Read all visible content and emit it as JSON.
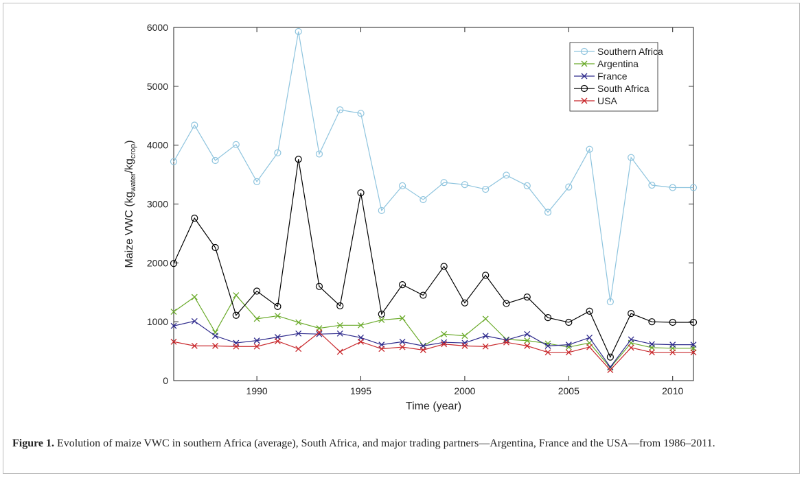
{
  "chart_data": {
    "type": "line",
    "x_label": "Time (year)",
    "y_label": [
      "Maize VWC (kg",
      "water",
      "/kg",
      "crop",
      ")"
    ],
    "x": [
      1986,
      1987,
      1988,
      1989,
      1990,
      1991,
      1992,
      1993,
      1994,
      1995,
      1996,
      1997,
      1998,
      1999,
      2000,
      2001,
      2002,
      2003,
      2004,
      2005,
      2006,
      2007,
      2008,
      2009,
      2010,
      2011
    ],
    "xlim": [
      1986,
      2011
    ],
    "xticks": [
      1990,
      1995,
      2000,
      2005,
      2010
    ],
    "ylim": [
      0,
      6000
    ],
    "yticks": [
      0,
      1000,
      2000,
      3000,
      4000,
      5000,
      6000
    ],
    "legend": "upper right",
    "series": [
      {
        "name": "Southern Africa",
        "color": "#8ec4de",
        "marker": "o",
        "values": [
          3720,
          4340,
          3740,
          4010,
          3380,
          3870,
          5930,
          3850,
          4600,
          4540,
          2890,
          3310,
          3075,
          3365,
          3330,
          3250,
          3490,
          3310,
          2860,
          3290,
          3930,
          1340,
          3790,
          3320,
          3280,
          3280
        ]
      },
      {
        "name": "Argentina",
        "color": "#6aaa2a",
        "marker": "x",
        "values": [
          1170,
          1420,
          820,
          1450,
          1050,
          1100,
          990,
          890,
          940,
          940,
          1030,
          1060,
          590,
          790,
          760,
          1050,
          700,
          680,
          630,
          570,
          640,
          220,
          640,
          560,
          550,
          550
        ]
      },
      {
        "name": "France",
        "color": "#2e2a8c",
        "marker": "x",
        "values": [
          930,
          1010,
          760,
          640,
          680,
          740,
          800,
          790,
          800,
          730,
          610,
          660,
          590,
          650,
          640,
          760,
          690,
          790,
          590,
          610,
          730,
          230,
          700,
          620,
          610,
          610
        ]
      },
      {
        "name": "South Africa",
        "color": "#000000",
        "marker": "o",
        "values": [
          1990,
          2760,
          2260,
          1110,
          1520,
          1260,
          3760,
          1600,
          1270,
          3190,
          1130,
          1630,
          1450,
          1940,
          1320,
          1790,
          1310,
          1420,
          1070,
          990,
          1180,
          400,
          1140,
          1000,
          990,
          990
        ]
      },
      {
        "name": "USA",
        "color": "#c8262a",
        "marker": "x",
        "values": [
          660,
          590,
          590,
          580,
          580,
          670,
          540,
          820,
          490,
          660,
          540,
          570,
          520,
          620,
          590,
          580,
          650,
          590,
          480,
          480,
          570,
          180,
          560,
          480,
          480,
          480
        ]
      }
    ]
  },
  "caption": {
    "label": "Figure 1.",
    "text": " Evolution of maize VWC in southern Africa (average), South Africa, and major trading partners—Argentina, France and the USA—from 1986–2011."
  }
}
